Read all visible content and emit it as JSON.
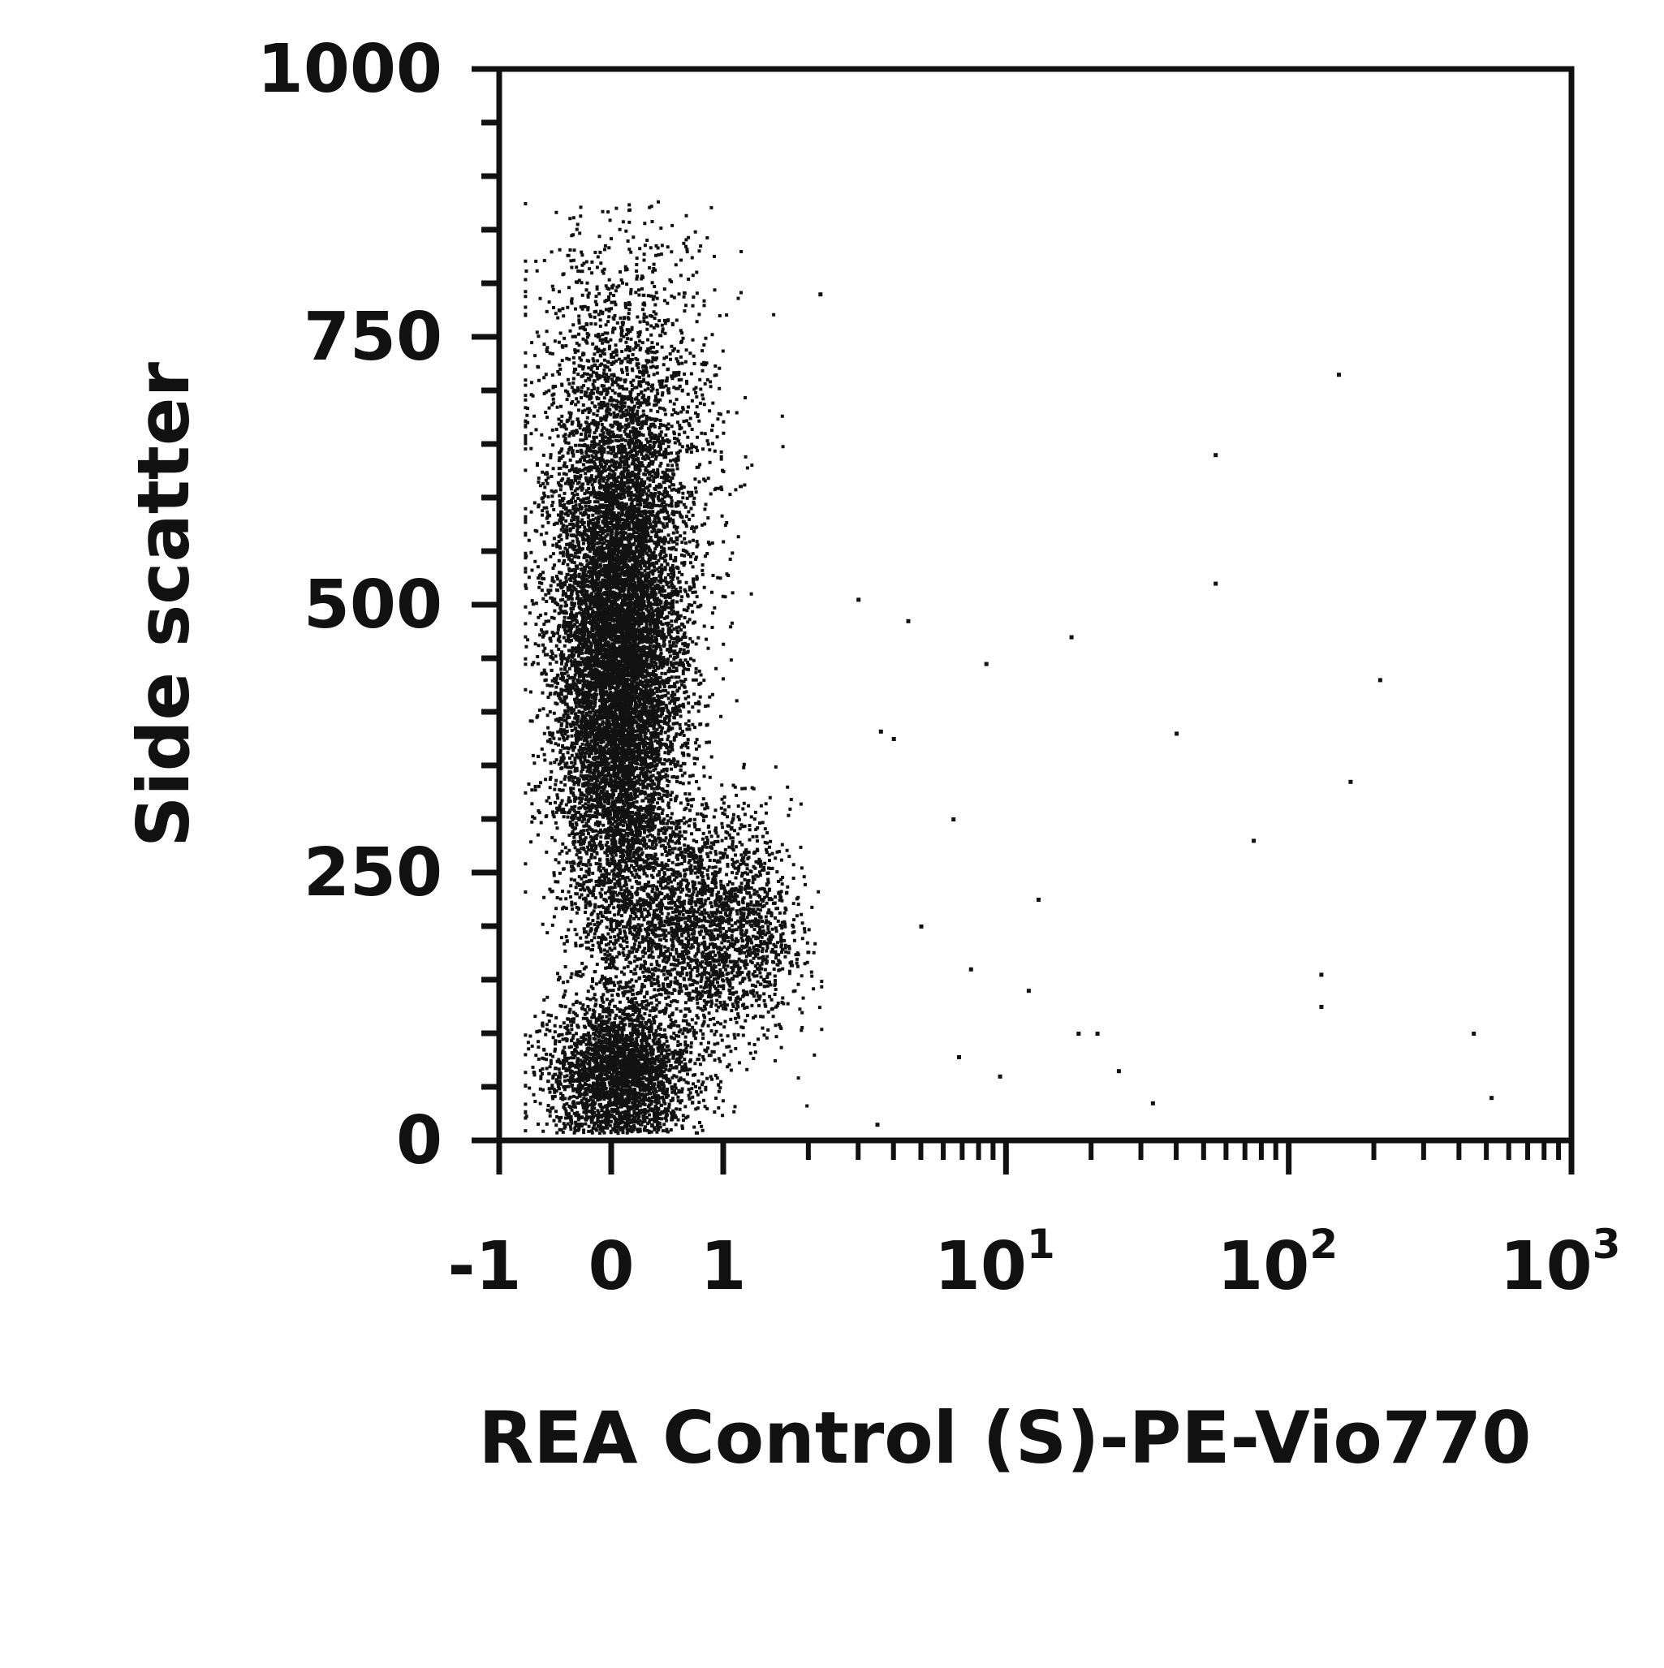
{
  "chart_data": {
    "type": "scatter",
    "title": "",
    "xlabel": "REA Control (S)-PE-Vio770",
    "ylabel": "Side scatter",
    "x_scale": "biexponential",
    "xlim": [
      -1,
      1000
    ],
    "ylim": [
      0,
      1000
    ],
    "x_ticks": [
      {
        "value": -1,
        "label": "-1",
        "exponent": ""
      },
      {
        "value": 0,
        "label": "0",
        "exponent": ""
      },
      {
        "value": 1,
        "label": "1",
        "exponent": ""
      },
      {
        "value": 10,
        "label": "10",
        "exponent": "1"
      },
      {
        "value": 100,
        "label": "10",
        "exponent": "2"
      },
      {
        "value": 1000,
        "label": "10",
        "exponent": "3"
      }
    ],
    "y_ticks": [
      {
        "value": 0,
        "label": "0"
      },
      {
        "value": 250,
        "label": "250"
      },
      {
        "value": 500,
        "label": "500"
      },
      {
        "value": 750,
        "label": "750"
      },
      {
        "value": 1000,
        "label": "1000"
      }
    ],
    "grid": false,
    "legend": "none",
    "point_color": "#111111",
    "populations": [
      {
        "x_center": 0.05,
        "x_spread": 0.28,
        "y_center": 440,
        "y_spread": 120,
        "count": 11000
      },
      {
        "x_center": 0.05,
        "x_spread": 0.32,
        "y_center": 65,
        "y_spread": 32,
        "count": 8000
      },
      {
        "x_center": 0.8,
        "x_spread": 0.45,
        "y_center": 200,
        "y_spread": 55,
        "count": 2600
      },
      {
        "x_center": 0.1,
        "x_spread": 0.42,
        "y_center": 640,
        "y_spread": 110,
        "count": 2200
      }
    ],
    "outlier_points": [
      [
        2.2,
        790
      ],
      [
        3.0,
        505
      ],
      [
        4.5,
        485
      ],
      [
        4.0,
        375
      ],
      [
        3.6,
        382
      ],
      [
        6.5,
        300
      ],
      [
        8.5,
        445
      ],
      [
        13,
        225
      ],
      [
        17,
        470
      ],
      [
        40,
        380
      ],
      [
        55,
        640
      ],
      [
        55,
        520
      ],
      [
        75,
        280
      ],
      [
        150,
        715
      ],
      [
        165,
        335
      ],
      [
        210,
        430
      ],
      [
        130,
        155
      ],
      [
        130,
        125
      ],
      [
        450,
        100
      ],
      [
        520,
        40
      ],
      [
        33,
        35
      ],
      [
        9.5,
        60
      ],
      [
        5,
        200
      ],
      [
        7.5,
        160
      ],
      [
        12,
        140
      ],
      [
        18,
        100
      ],
      [
        21,
        100
      ],
      [
        25,
        65
      ],
      [
        3.5,
        15
      ],
      [
        6.8,
        78
      ]
    ]
  }
}
